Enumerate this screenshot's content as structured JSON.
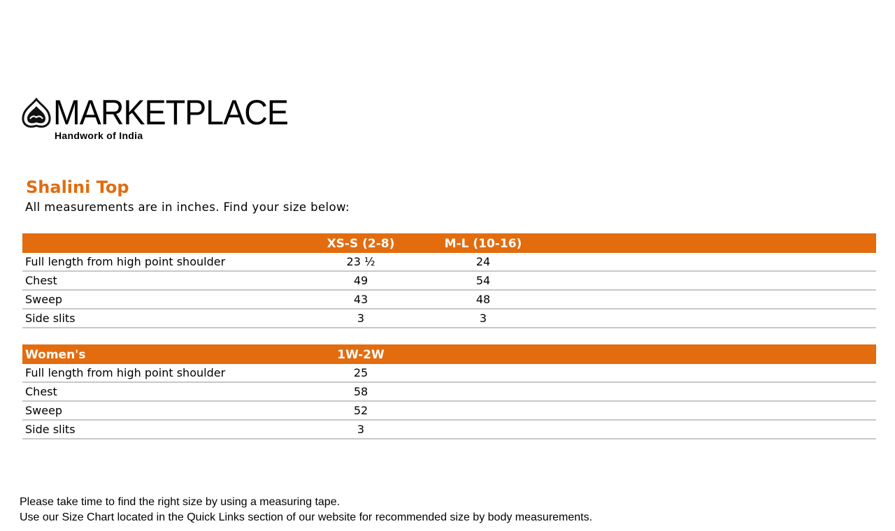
{
  "logo": {
    "name": "MARKETPLACE",
    "tagline": "Handwork of India"
  },
  "title": "Shalini Top",
  "subtitle": "All measurements are in inches. Find your size below:",
  "brand_color": "#E36C0E",
  "table1": {
    "headers": [
      "",
      "XS-S (2-8)",
      "M-L (10-16)"
    ],
    "rows": [
      [
        "Full length from high point shoulder",
        "23 ½",
        "24"
      ],
      [
        "Chest",
        "49",
        "54"
      ],
      [
        "Sweep",
        "43",
        "48"
      ],
      [
        "Side slits",
        "3",
        "3"
      ]
    ]
  },
  "table2": {
    "headers": [
      "Women's",
      "1W-2W"
    ],
    "rows": [
      [
        "Full length from high point shoulder",
        "25"
      ],
      [
        "Chest",
        "58"
      ],
      [
        "Sweep",
        "52"
      ],
      [
        "Side slits",
        "3"
      ]
    ]
  },
  "footer": {
    "line1": "Please take time to find the right size by using a measuring tape.",
    "line2": "Use our Size Chart located in the Quick Links section of our website for recommended size by body measurements."
  }
}
